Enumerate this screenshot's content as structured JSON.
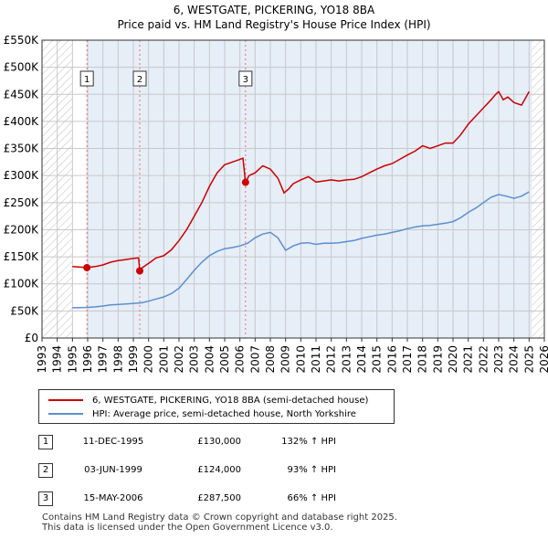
{
  "title": "6, WESTGATE, PICKERING, YO18 8BA",
  "subtitle": "Price paid vs. HM Land Registry's House Price Index (HPI)",
  "colors": {
    "property_line": "#cc0000",
    "hpi_line": "#5b8fd0",
    "shade": "#e6eef8",
    "grid": "#c8c8c8",
    "marker_line": "#ff6666"
  },
  "legend": {
    "property": "6, WESTGATE, PICKERING, YO18 8BA (semi-detached house)",
    "hpi": "HPI: Average price, semi-detached house, North Yorkshire"
  },
  "transactions": [
    {
      "num": "1",
      "date": "11-DEC-1995",
      "price": "£130,000",
      "hpi": "132% ↑ HPI"
    },
    {
      "num": "2",
      "date": "03-JUN-1999",
      "price": "£124,000",
      "hpi": "93% ↑ HPI"
    },
    {
      "num": "3",
      "date": "15-MAY-2006",
      "price": "£287,500",
      "hpi": "66% ↑ HPI"
    }
  ],
  "footer": {
    "line1": "Contains HM Land Registry data © Crown copyright and database right 2025.",
    "line2": "This data is licensed under the Open Government Licence v3.0."
  },
  "chart_data": {
    "type": "line",
    "xlim": [
      1993,
      2026
    ],
    "ylim": [
      0,
      550000
    ],
    "y_ticks": [
      {
        "value": 0,
        "label": "£0"
      },
      {
        "value": 50000,
        "label": "£50K"
      },
      {
        "value": 100000,
        "label": "£100K"
      },
      {
        "value": 150000,
        "label": "£150K"
      },
      {
        "value": 200000,
        "label": "£200K"
      },
      {
        "value": 250000,
        "label": "£250K"
      },
      {
        "value": 300000,
        "label": "£300K"
      },
      {
        "value": 350000,
        "label": "£350K"
      },
      {
        "value": 400000,
        "label": "£400K"
      },
      {
        "value": 450000,
        "label": "£450K"
      },
      {
        "value": 500000,
        "label": "£500K"
      },
      {
        "value": 550000,
        "label": "£550K"
      }
    ],
    "x_ticks": [
      1993,
      1994,
      1995,
      1996,
      1997,
      1998,
      1999,
      2000,
      2001,
      2002,
      2003,
      2004,
      2005,
      2006,
      2007,
      2008,
      2009,
      2010,
      2011,
      2012,
      2013,
      2014,
      2015,
      2016,
      2017,
      2018,
      2019,
      2020,
      2021,
      2022,
      2023,
      2024,
      2025,
      2026
    ],
    "hatched_ranges": [
      [
        1993,
        1995.0
      ],
      [
        2025.2,
        2026
      ]
    ],
    "shaded_range": [
      1995.95,
      2025.2
    ],
    "markers": [
      {
        "label": "1",
        "x": 1995.95,
        "y": 130000
      },
      {
        "label": "2",
        "x": 1999.42,
        "y": 124000
      },
      {
        "label": "3",
        "x": 2006.37,
        "y": 287500
      }
    ],
    "series": [
      {
        "name": "6, WESTGATE, PICKERING, YO18 8BA (semi-detached house)",
        "x": [
          1995.0,
          1995.95,
          1996.5,
          1997.0,
          1997.5,
          1998.0,
          1998.5,
          1999.0,
          1999.35,
          1999.42,
          1999.6,
          2000.0,
          2000.5,
          2001.0,
          2001.5,
          2002.0,
          2002.5,
          2003.0,
          2003.5,
          2004.0,
          2004.5,
          2005.0,
          2005.5,
          2006.0,
          2006.2,
          2006.37,
          2006.6,
          2007.0,
          2007.5,
          2008.0,
          2008.5,
          2008.9,
          2009.2,
          2009.5,
          2010.0,
          2010.5,
          2011.0,
          2011.5,
          2012.0,
          2012.5,
          2013.0,
          2013.5,
          2014.0,
          2014.5,
          2015.0,
          2015.5,
          2016.0,
          2016.5,
          2017.0,
          2017.5,
          2018.0,
          2018.5,
          2019.0,
          2019.5,
          2020.0,
          2020.5,
          2021.0,
          2021.5,
          2022.0,
          2022.5,
          2022.8,
          2023.0,
          2023.3,
          2023.6,
          2024.0,
          2024.5,
          2024.8,
          2025.0
        ],
        "y": [
          132000,
          130000,
          132000,
          135000,
          140000,
          143000,
          145000,
          147000,
          148000,
          124000,
          130000,
          138000,
          148000,
          152000,
          163000,
          180000,
          200000,
          225000,
          250000,
          280000,
          305000,
          320000,
          325000,
          330000,
          332000,
          287500,
          300000,
          305000,
          318000,
          312000,
          295000,
          268000,
          275000,
          285000,
          292000,
          298000,
          288000,
          290000,
          292000,
          290000,
          292000,
          293000,
          298000,
          305000,
          312000,
          318000,
          322000,
          330000,
          338000,
          345000,
          355000,
          350000,
          355000,
          360000,
          360000,
          375000,
          395000,
          410000,
          425000,
          440000,
          450000,
          455000,
          440000,
          445000,
          435000,
          430000,
          445000,
          455000
        ]
      },
      {
        "name": "HPI: Average price, semi-detached house, North Yorkshire",
        "x": [
          1995.0,
          1995.5,
          1996.0,
          1996.5,
          1997.0,
          1997.5,
          1998.0,
          1998.5,
          1999.0,
          1999.5,
          2000.0,
          2000.5,
          2001.0,
          2001.5,
          2002.0,
          2002.5,
          2003.0,
          2003.5,
          2004.0,
          2004.5,
          2005.0,
          2005.5,
          2006.0,
          2006.5,
          2007.0,
          2007.5,
          2008.0,
          2008.5,
          2009.0,
          2009.5,
          2010.0,
          2010.5,
          2011.0,
          2011.5,
          2012.0,
          2012.5,
          2013.0,
          2013.5,
          2014.0,
          2014.5,
          2015.0,
          2015.5,
          2016.0,
          2016.5,
          2017.0,
          2017.5,
          2018.0,
          2018.5,
          2019.0,
          2019.5,
          2020.0,
          2020.5,
          2021.0,
          2021.5,
          2022.0,
          2022.5,
          2023.0,
          2023.5,
          2024.0,
          2024.5,
          2025.0
        ],
        "y": [
          56000,
          56000,
          56500,
          57500,
          59000,
          61000,
          62000,
          63000,
          64000,
          65000,
          68000,
          72000,
          76000,
          82000,
          92000,
          108000,
          125000,
          140000,
          152000,
          160000,
          165000,
          167000,
          170000,
          175000,
          185000,
          192000,
          195000,
          185000,
          162000,
          170000,
          175000,
          176000,
          173000,
          175000,
          175000,
          176000,
          178000,
          180000,
          184000,
          187000,
          190000,
          192000,
          195000,
          198000,
          202000,
          205000,
          207000,
          208000,
          210000,
          212000,
          215000,
          222000,
          232000,
          240000,
          250000,
          260000,
          265000,
          262000,
          258000,
          262000,
          270000
        ]
      }
    ]
  }
}
